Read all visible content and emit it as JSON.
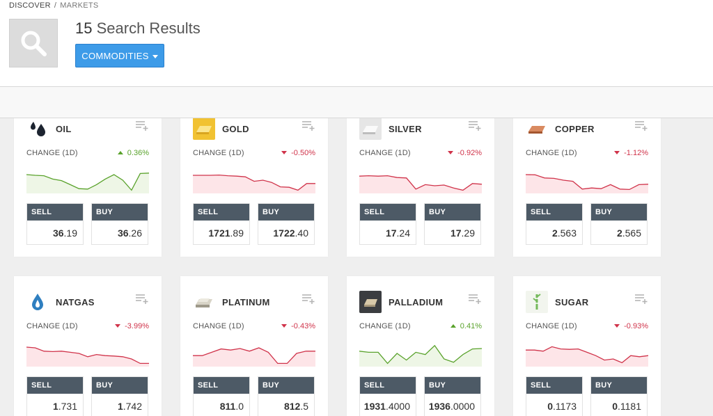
{
  "breadcrumb": {
    "root": "DISCOVER",
    "separator": "/",
    "current": "MARKETS"
  },
  "search": {
    "icon": "magnifier-icon"
  },
  "results": {
    "count": "15",
    "label": "Search Results"
  },
  "filter": {
    "label": "COMMODITIES"
  },
  "labels": {
    "change": "CHANGE (1D)",
    "sell": "SELL",
    "buy": "BUY"
  },
  "colors": {
    "up": "#59a22b",
    "down": "#d0334a",
    "accent": "#3d9be8",
    "trade_header": "#4d5a66"
  },
  "instruments": [
    {
      "name": "OIL",
      "icon": "oil-drop-icon",
      "change": "0.36%",
      "direction": "up",
      "sell": {
        "bold": "36",
        "rest": ".19"
      },
      "buy": {
        "bold": "36",
        "rest": ".26"
      },
      "spark": [
        0.75,
        0.72,
        0.7,
        0.55,
        0.48,
        0.3,
        0.12,
        0.1,
        0.3,
        0.55,
        0.75,
        0.5,
        0.05,
        0.8,
        0.82
      ]
    },
    {
      "name": "GOLD",
      "icon": "gold-bar-icon",
      "change": "-0.50%",
      "direction": "down",
      "sell": {
        "bold": "1721",
        "rest": ".89"
      },
      "buy": {
        "bold": "1722",
        "rest": ".40"
      },
      "spark": [
        0.72,
        0.72,
        0.72,
        0.73,
        0.7,
        0.68,
        0.65,
        0.45,
        0.5,
        0.4,
        0.2,
        0.18,
        0.05,
        0.35,
        0.35
      ]
    },
    {
      "name": "SILVER",
      "icon": "silver-bar-icon",
      "change": "-0.92%",
      "direction": "down",
      "sell": {
        "bold": "17",
        "rest": ".24"
      },
      "buy": {
        "bold": "17",
        "rest": ".29"
      },
      "spark": [
        0.68,
        0.7,
        0.68,
        0.7,
        0.62,
        0.6,
        0.1,
        0.3,
        0.25,
        0.28,
        0.15,
        0.05,
        0.35,
        0.32
      ]
    },
    {
      "name": "COPPER",
      "icon": "copper-bar-icon",
      "change": "-1.12%",
      "direction": "down",
      "sell": {
        "bold": "2",
        "rest": ".563"
      },
      "buy": {
        "bold": "2",
        "rest": ".565"
      },
      "spark": [
        0.75,
        0.74,
        0.6,
        0.58,
        0.5,
        0.45,
        0.1,
        0.15,
        0.12,
        0.3,
        0.1,
        0.08,
        0.3,
        0.32
      ]
    },
    {
      "name": "NATGAS",
      "icon": "gas-drop-icon",
      "change": "-3.99%",
      "direction": "down",
      "sell": {
        "bold": "1",
        "rest": ".731"
      },
      "buy": {
        "bold": "1",
        "rest": ".742"
      },
      "spark": [
        0.78,
        0.75,
        0.6,
        0.58,
        0.6,
        0.55,
        0.5,
        0.35,
        0.45,
        0.4,
        0.38,
        0.35,
        0.25,
        0.05,
        0.05
      ]
    },
    {
      "name": "PLATINUM",
      "icon": "platinum-bar-icon",
      "change": "-0.43%",
      "direction": "down",
      "sell": {
        "bold": "811",
        "rest": ".0"
      },
      "buy": {
        "bold": "812",
        "rest": ".5"
      },
      "spark": [
        0.4,
        0.4,
        0.55,
        0.7,
        0.65,
        0.72,
        0.6,
        0.75,
        0.55,
        0.05,
        0.05,
        0.5,
        0.6,
        0.6
      ]
    },
    {
      "name": "PALLADIUM",
      "icon": "palladium-bar-icon",
      "change": "0.41%",
      "direction": "up",
      "sell": {
        "bold": "1931",
        "rest": ".4000"
      },
      "buy": {
        "bold": "1936",
        "rest": ".0000"
      },
      "spark": [
        0.6,
        0.55,
        0.55,
        0.05,
        0.5,
        0.2,
        0.55,
        0.45,
        0.85,
        0.25,
        0.1,
        0.45,
        0.7,
        0.72
      ]
    },
    {
      "name": "SUGAR",
      "icon": "sugar-cane-icon",
      "change": "-0.93%",
      "direction": "down",
      "sell": {
        "bold": "0",
        "rest": ".1173"
      },
      "buy": {
        "bold": "0",
        "rest": ".1181"
      },
      "spark": [
        0.65,
        0.65,
        0.6,
        0.8,
        0.7,
        0.68,
        0.7,
        0.55,
        0.4,
        0.2,
        0.25,
        0.08,
        0.4,
        0.35,
        0.4
      ]
    }
  ]
}
